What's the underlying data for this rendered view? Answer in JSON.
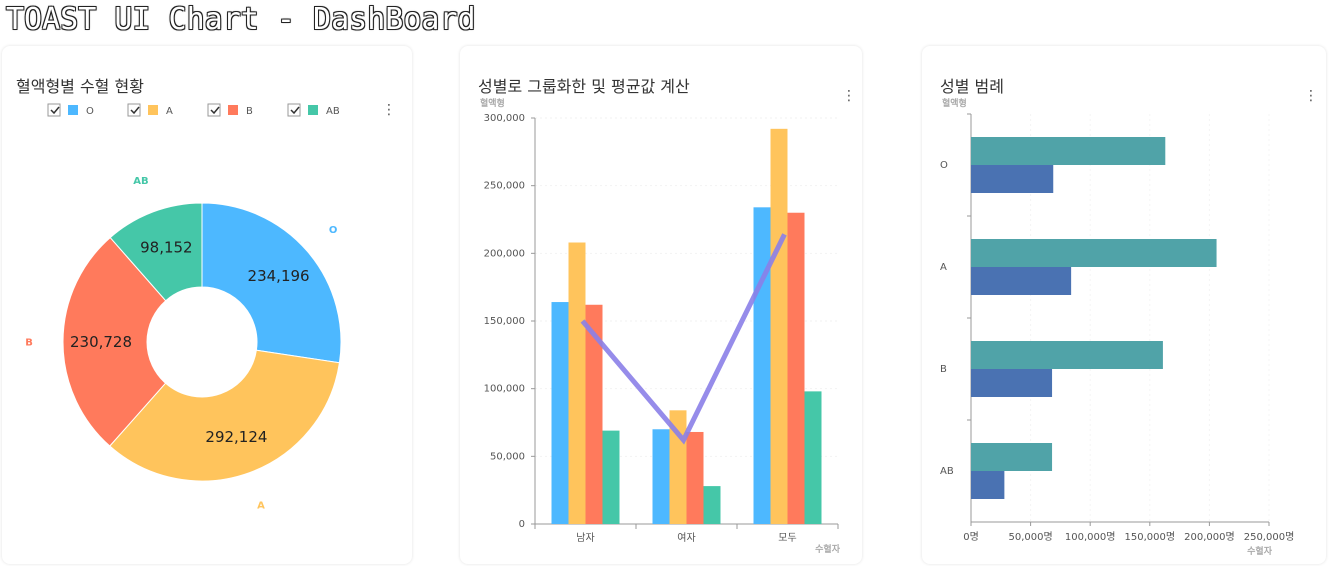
{
  "page": {
    "title": "TOAST UI Chart - DashBoard"
  },
  "colors": {
    "O": "#4db8ff",
    "A": "#ffc45c",
    "B": "#ff7a5c",
    "AB": "#45c7a8",
    "line": "#8b7fe8",
    "bar_total": "#50a3a8",
    "bar_donors": "#4a72b2"
  },
  "chart_data": [
    {
      "type": "pie",
      "title": "혈액형별 수혈 현황",
      "legend": {
        "position": "top",
        "checkboxes": true
      },
      "series": [
        {
          "name": "O",
          "value": 234196
        },
        {
          "name": "A",
          "value": 292124
        },
        {
          "name": "B",
          "value": 230728
        },
        {
          "name": "AB",
          "value": 98152
        }
      ],
      "donut": true
    },
    {
      "type": "bar",
      "title": "성별로 그룹화한 및 평균값 계산",
      "ylabel": "혈액형",
      "xlabel": "수혈자",
      "categories": [
        "남자",
        "여자",
        "모두"
      ],
      "ylim": [
        0,
        300000
      ],
      "yticks": [
        "0",
        "50,000",
        "100,000",
        "150,000",
        "200,000",
        "250,000",
        "300,000"
      ],
      "series": [
        {
          "name": "O",
          "values": [
            164000,
            70000,
            234000
          ]
        },
        {
          "name": "A",
          "values": [
            208000,
            84000,
            292000
          ]
        },
        {
          "name": "B",
          "values": [
            162000,
            68000,
            230000
          ]
        },
        {
          "name": "AB",
          "values": [
            69000,
            28000,
            98000
          ]
        }
      ],
      "line": {
        "values": [
          150000,
          62000,
          214000
        ]
      }
    },
    {
      "type": "bar",
      "orientation": "horizontal",
      "title": "성별 범례",
      "ylabel": "혈액형",
      "xlabel": "수혈자",
      "categories": [
        "O",
        "A",
        "B",
        "AB"
      ],
      "xlim": [
        0,
        250000
      ],
      "xticks": [
        "0명",
        "50,000명",
        "100,000명",
        "150,000명",
        "200,000명",
        "250,000명"
      ],
      "series": [
        {
          "values": [
            163000,
            206000,
            161000,
            68000
          ]
        },
        {
          "values": [
            69000,
            84000,
            68000,
            28000
          ]
        }
      ]
    }
  ]
}
